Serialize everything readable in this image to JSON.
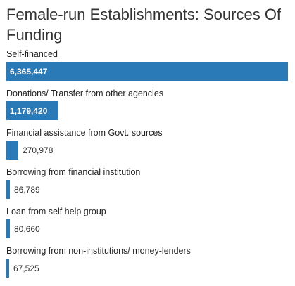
{
  "chart_data": {
    "type": "bar",
    "orientation": "horizontal",
    "title": "Female-run Establishments: Sources Of Funding",
    "categories": [
      "Self-financed",
      "Donations/ Transfer from other agencies",
      "Financial assistance from Govt. sources",
      "Borrowing from financial institution",
      "Loan from self help group",
      "Borrowing from non-institutions/ money-lenders"
    ],
    "values": [
      6365447,
      1179420,
      270978,
      86789,
      80660,
      67525
    ],
    "value_labels": [
      "6,365,447",
      "1,179,420",
      "270,978",
      "86,789",
      "80,660",
      "67,525"
    ],
    "xlim": [
      0,
      6365447
    ],
    "grid": false,
    "legend": "none",
    "bar_color": "#2a7ab8"
  }
}
